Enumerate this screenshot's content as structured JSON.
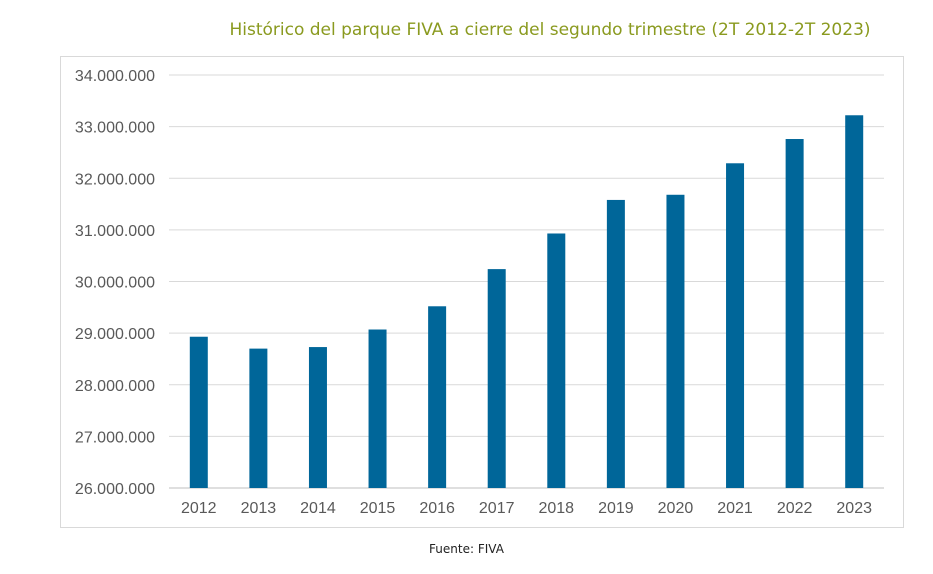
{
  "chart_data": {
    "type": "bar",
    "title": "Histórico del parque FIVA a cierre del segundo trimestre (2T 2012-2T 2023)",
    "xlabel": "",
    "ylabel": "",
    "categories": [
      "2012",
      "2013",
      "2014",
      "2015",
      "2016",
      "2017",
      "2018",
      "2019",
      "2020",
      "2021",
      "2022",
      "2023"
    ],
    "values": [
      28930000,
      28700000,
      28730000,
      29070000,
      29520000,
      30240000,
      30930000,
      31580000,
      31680000,
      32290000,
      32760000,
      33220000
    ],
    "ylim": [
      26000000,
      34000000
    ],
    "yticks": [
      26000000,
      27000000,
      28000000,
      29000000,
      30000000,
      31000000,
      32000000,
      33000000,
      34000000
    ],
    "ytick_labels": [
      "26.000.000",
      "27.000.000",
      "28.000.000",
      "29.000.000",
      "30.000.000",
      "31.000.000",
      "32.000.000",
      "33.000.000",
      "34.000.000"
    ],
    "grid": true,
    "legend": "none",
    "bar_color": "#006699",
    "title_color": "#8a9a1f",
    "source": "Fuente: FIVA"
  }
}
